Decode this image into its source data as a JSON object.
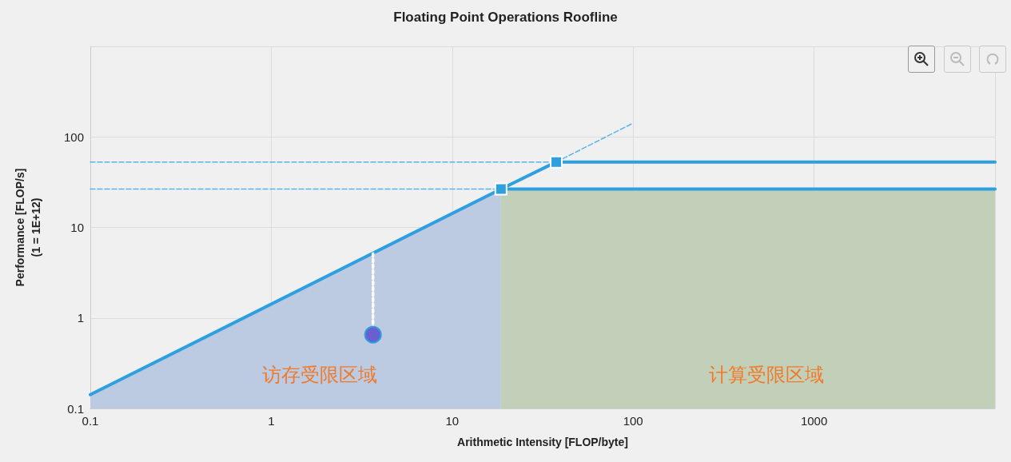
{
  "chart_data": {
    "type": "line",
    "title": "Floating Point Operations Roofline",
    "xlabel": "Arithmetic Intensity [FLOP/byte]",
    "ylabel": "Performance [FLOP/s]\n(1 = 1E+12)",
    "log": "xy",
    "grid": true,
    "xlim": [
      0.1,
      10000
    ],
    "xticks": [
      0.1,
      1,
      10,
      100,
      1000,
      {
        "value": 10000,
        "label": null
      }
    ],
    "ylim": [
      0.1,
      1000
    ],
    "yticks": [
      0.1,
      1,
      10,
      100,
      {
        "value": 1000,
        "label": null
      }
    ],
    "series": [
      {
        "type": "area",
        "color": "#bccae2",
        "x": [
          0.1,
          18.6
        ],
        "values": [
          0.142,
          26.5
        ]
      },
      {
        "type": "area",
        "color": "#c3d0b9",
        "x": [
          18.6,
          10000
        ],
        "values": [
          26.5,
          26.5
        ]
      },
      {
        "color": "#5ab4e6",
        "line_style": "dashed",
        "x": [
          0.1,
          18.6
        ],
        "values": [
          26.5,
          26.5
        ]
      },
      {
        "color": "#5ab4e6",
        "line_style": "dashed",
        "x": [
          0.1,
          37.6
        ],
        "values": [
          52.8,
          52.8
        ]
      },
      {
        "color": "#5ab4e6",
        "line_style": "dashed",
        "x": [
          37.6,
          100
        ],
        "values": [
          52.8,
          142
        ]
      },
      {
        "color": "#2e9fdf",
        "line_style": "solid",
        "x": [
          0.1,
          18.6,
          10000
        ],
        "values": [
          0.142,
          26.5,
          26.5
        ]
      },
      {
        "color": "#2e9fdf",
        "line_style": "solid",
        "x": [
          18.6,
          37.6,
          10000
        ],
        "values": [
          26.5,
          52.8,
          52.8
        ]
      },
      {
        "color": "#ffffff",
        "line_style": "dotted",
        "x": [
          3.65,
          3.65
        ],
        "values": [
          0.653,
          5.2
        ]
      },
      {
        "type": "scatter",
        "color": "#2e9fdf",
        "marker": "square",
        "x": [
          18.6,
          37.6
        ],
        "values": [
          26.5,
          52.8
        ]
      },
      {
        "type": "scatter",
        "color": "#6a5fd0",
        "marker": "circle",
        "x": [
          3.65
        ],
        "values": [
          0.653
        ]
      }
    ],
    "annotations": [
      "访存受限区域",
      "计算受限区域"
    ]
  }
}
